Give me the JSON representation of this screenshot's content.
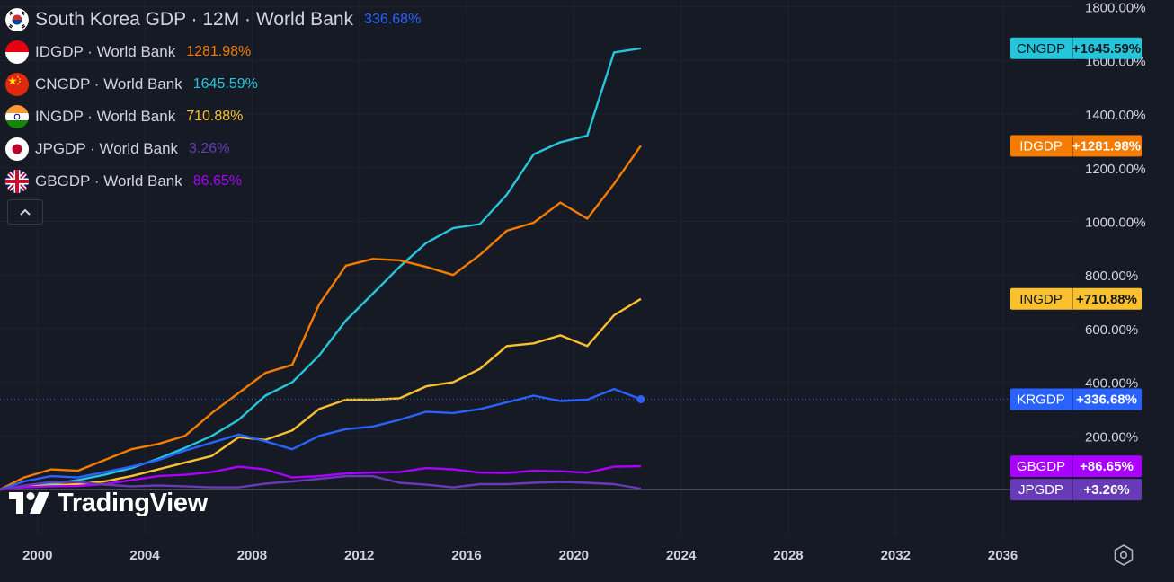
{
  "legend": {
    "main": {
      "name": "South Korea GDP · 12M · World Bank",
      "value": "336.68%",
      "color": "#2962ff"
    },
    "rows": [
      {
        "name": "IDGDP · World Bank",
        "value": "1281.98%",
        "color": "#f57c00",
        "flag": "indonesia-flag-icon"
      },
      {
        "name": "CNGDP · World Bank",
        "value": "1645.59%",
        "color": "#26c6da",
        "flag": "china-flag-icon"
      },
      {
        "name": "INGDP · World Bank",
        "value": "710.88%",
        "color": "#fbc02d",
        "flag": "india-flag-icon"
      },
      {
        "name": "JPGDP · World Bank",
        "value": "3.26%",
        "color": "#673ab7",
        "flag": "japan-flag-icon"
      },
      {
        "name": "GBGDP · World Bank",
        "value": "86.65%",
        "color": "#aa00ff",
        "flag": "uk-flag-icon"
      }
    ]
  },
  "logo_text": "TradingView",
  "chart_data": {
    "type": "line",
    "ylim": [
      0,
      1850
    ],
    "xlim": [
      1998.6,
      2039.5
    ],
    "y_ticks": [
      200,
      400,
      600,
      800,
      1000,
      1200,
      1400,
      1600,
      1800
    ],
    "y_tick_labels": [
      "200.00%",
      "400.00%",
      "600.00%",
      "800.00%",
      "1000.00%",
      "1200.00%",
      "1400.00%",
      "1600.00%",
      "1800.00%"
    ],
    "x_ticks": [
      2000,
      2004,
      2008,
      2012,
      2016,
      2020,
      2024,
      2028,
      2032,
      2036
    ],
    "x_tick_labels": [
      "2000",
      "2004",
      "2008",
      "2012",
      "2016",
      "2020",
      "2024",
      "2028",
      "2032",
      "2036"
    ],
    "x": [
      1998.6,
      1999.5,
      2000.5,
      2001.5,
      2002.5,
      2003.5,
      2004.5,
      2005.5,
      2006.5,
      2007.5,
      2008.5,
      2009.5,
      2010.5,
      2011.5,
      2012.5,
      2013.5,
      2014.5,
      2015.5,
      2016.5,
      2017.5,
      2018.5,
      2019.5,
      2020.5,
      2021.5,
      2022.5
    ],
    "series": [
      {
        "name": "CNGDP",
        "color": "#26c6da",
        "values": [
          0,
          10,
          20,
          35,
          55,
          80,
          115,
          155,
          200,
          260,
          350,
          400,
          500,
          630,
          730,
          830,
          920,
          975,
          990,
          1100,
          1250,
          1295,
          1320,
          1630,
          1645.59
        ]
      },
      {
        "name": "IDGDP",
        "color": "#f57c00",
        "values": [
          0,
          45,
          75,
          70,
          110,
          150,
          170,
          200,
          285,
          360,
          435,
          465,
          690,
          835,
          860,
          855,
          830,
          800,
          875,
          965,
          995,
          1070,
          1010,
          1140,
          1281.98
        ]
      },
      {
        "name": "INGDP",
        "color": "#fbc02d",
        "values": [
          0,
          10,
          15,
          20,
          30,
          50,
          75,
          100,
          125,
          195,
          185,
          220,
          300,
          335,
          335,
          340,
          385,
          400,
          450,
          535,
          545,
          575,
          535,
          650,
          710.88
        ]
      },
      {
        "name": "KRGDP",
        "color": "#2962ff",
        "values": [
          0,
          30,
          50,
          45,
          65,
          85,
          110,
          145,
          175,
          205,
          180,
          150,
          200,
          225,
          235,
          260,
          290,
          285,
          300,
          325,
          350,
          330,
          335,
          375,
          336.68
        ]
      },
      {
        "name": "GBGDP",
        "color": "#aa00ff",
        "values": [
          0,
          8,
          12,
          13,
          20,
          35,
          50,
          55,
          65,
          85,
          75,
          45,
          50,
          60,
          63,
          65,
          80,
          75,
          63,
          62,
          70,
          68,
          63,
          85,
          86.65
        ]
      },
      {
        "name": "JPGDP",
        "color": "#673ab7",
        "values": [
          0,
          15,
          28,
          28,
          18,
          12,
          15,
          12,
          8,
          8,
          22,
          30,
          40,
          50,
          50,
          25,
          18,
          8,
          20,
          20,
          25,
          28,
          25,
          20,
          3.26
        ]
      }
    ],
    "price_labels": [
      {
        "ticker": "CNGDP",
        "pct": "+1645.59%",
        "value": 1645.59,
        "bg": "#26c6da",
        "fg": "#131722"
      },
      {
        "ticker": "IDGDP",
        "pct": "+1281.98%",
        "value": 1281.98,
        "bg": "#f57c00",
        "fg": "#ffffff"
      },
      {
        "ticker": "INGDP",
        "pct": "+710.88%",
        "value": 710.88,
        "bg": "#fbc02d",
        "fg": "#131722"
      },
      {
        "ticker": "KRGDP",
        "pct": "+336.68%",
        "value": 336.68,
        "bg": "#2962ff",
        "fg": "#ffffff"
      },
      {
        "ticker": "GBGDP",
        "pct": "+86.65%",
        "value": 86.65,
        "bg": "#aa00ff",
        "fg": "#ffffff"
      },
      {
        "ticker": "JPGDP",
        "pct": "+3.26%",
        "value": 3.26,
        "bg": "#673ab7",
        "fg": "#ffffff"
      }
    ]
  }
}
